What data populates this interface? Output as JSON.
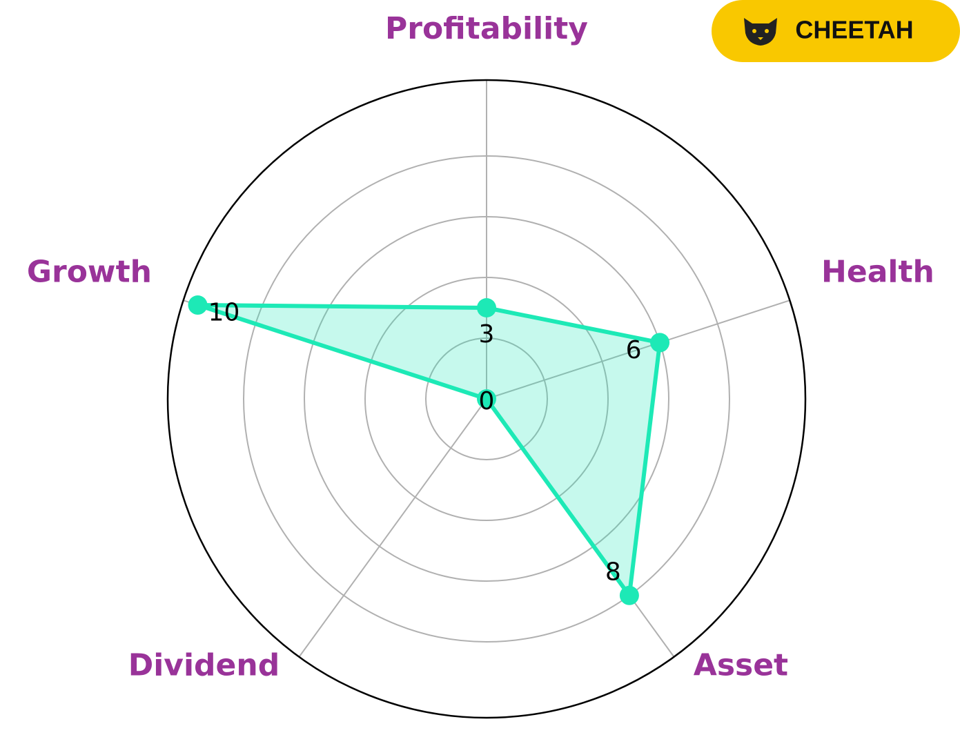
{
  "brand": "CHEETAH",
  "chart_data": {
    "type": "radar",
    "categories": [
      "Profitability",
      "Health",
      "Asset",
      "Dividend",
      "Growth"
    ],
    "values": [
      3,
      6,
      8,
      0,
      10
    ],
    "color": "#1de9b6",
    "label_color": "#993399",
    "ylim": [
      0,
      10.5
    ],
    "yticks": [
      2,
      4,
      6,
      8
    ],
    "grid": true
  }
}
